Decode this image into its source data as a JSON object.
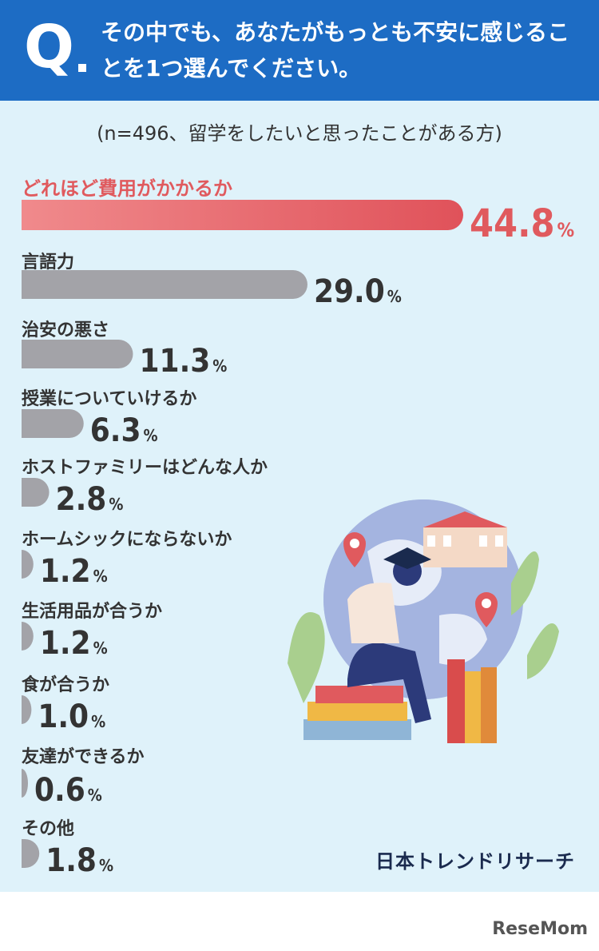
{
  "header": {
    "q_mark": "Q",
    "question": "その中でも、あなたがもっとも不安に感じることを1つ選んでください。"
  },
  "subtitle": "(n=496、留学をしたいと思ったことがある方)",
  "chart_data": {
    "type": "bar",
    "orientation": "horizontal",
    "categories": [
      "どれほど費用がかかるか",
      "言語力",
      "治安の悪さ",
      "授業についていけるか",
      "ホストファミリーはどんな人か",
      "ホームシックにならないか",
      "生活用品が合うか",
      "食が合うか",
      "友達ができるか",
      "その他"
    ],
    "values": [
      44.8,
      29.0,
      11.3,
      6.3,
      2.8,
      1.2,
      1.2,
      1.0,
      0.6,
      1.8
    ],
    "value_labels": [
      "44.8",
      "29.0",
      "11.3",
      "6.3",
      "2.8",
      "1.2",
      "1.2",
      "1.0",
      "0.6",
      "1.8"
    ],
    "unit": "%",
    "highlight_index": 0,
    "colors": {
      "highlight_start": "#f08a8c",
      "highlight_end": "#e0525a",
      "bar": "#a3a3a8",
      "highlight_text": "#e05a5e"
    }
  },
  "brand": "日本トレンドリサーチ",
  "watermark": "ReseMom",
  "colors": {
    "header": "#1d6cc4",
    "panel": "#dff2fa"
  }
}
